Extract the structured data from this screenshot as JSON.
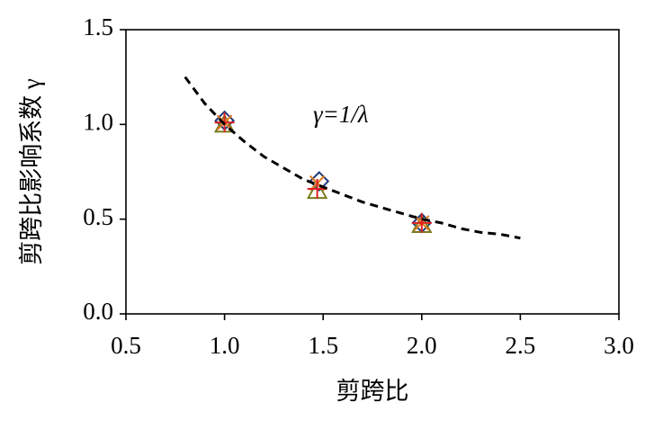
{
  "chart_data": {
    "type": "scatter",
    "xlabel": "剪跨比",
    "ylabel": "剪跨比影响系数 γ",
    "annotation": "γ=1/λ",
    "xlim": [
      0.5,
      3.0
    ],
    "xticks": [
      0.5,
      {
        "value": 1,
        "label": "1.0"
      },
      1.5,
      {
        "value": 2,
        "label": "2.0"
      },
      2.5,
      {
        "value": 3,
        "label": "3.0"
      }
    ],
    "ylim": [
      0,
      1.5
    ],
    "yticks": [
      {
        "value": 0,
        "label": "0.0"
      },
      0.5,
      {
        "value": 1,
        "label": "1.0"
      },
      1.5
    ],
    "grid": false,
    "series": [
      {
        "marker": "diamond",
        "color": "#1f3a7a",
        "x": [
          1.0,
          1.48,
          2.0
        ],
        "values": [
          1.02,
          0.7,
          0.48
        ]
      },
      {
        "marker": "triangle",
        "color": "#7a7a1f",
        "x": [
          1.0,
          1.47,
          2.0
        ],
        "values": [
          1.0,
          0.65,
          0.47
        ]
      },
      {
        "marker": "x",
        "color": "#e07a1f",
        "x": [
          1.0,
          1.47,
          2.0
        ],
        "values": [
          1.01,
          0.69,
          0.48
        ]
      },
      {
        "marker": "plus",
        "color": "#e02020",
        "x": [
          1.0,
          1.47,
          2.0
        ],
        "values": [
          1.01,
          0.66,
          0.48
        ]
      },
      {
        "marker": "none",
        "line_style": "dashed",
        "color": "#000000",
        "x": [
          0.8,
          0.9,
          1.0,
          1.1,
          1.2,
          1.3,
          1.4,
          1.5,
          1.6,
          1.7,
          1.8,
          1.9,
          2.0,
          2.1,
          2.2,
          2.3,
          2.4,
          2.5
        ],
        "values": [
          1.25,
          1.11,
          1.0,
          0.91,
          0.83,
          0.77,
          0.71,
          0.67,
          0.63,
          0.59,
          0.56,
          0.53,
          0.5,
          0.48,
          0.45,
          0.43,
          0.42,
          0.4
        ]
      }
    ]
  }
}
